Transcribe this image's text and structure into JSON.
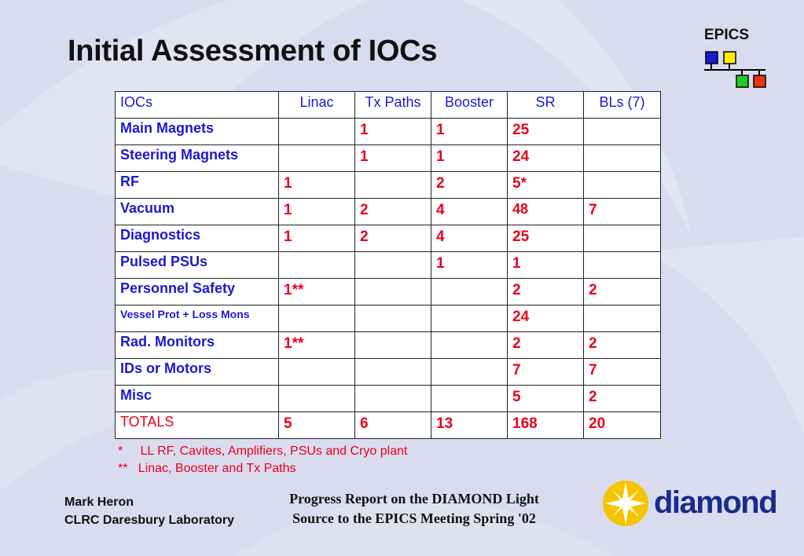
{
  "slide": {
    "title": "Initial Assessment of IOCs",
    "logo_text": "EPICS"
  },
  "table": {
    "headers": [
      "IOCs",
      "Linac",
      "Tx Paths",
      "Booster",
      "SR",
      "BLs (7)"
    ],
    "rows": [
      [
        "Main Magnets",
        "",
        "1",
        "1",
        "25",
        ""
      ],
      [
        "Steering Magnets",
        "",
        "1",
        "1",
        "24",
        ""
      ],
      [
        "RF",
        "1",
        "",
        "2",
        "5*",
        ""
      ],
      [
        "Vacuum",
        "1",
        "2",
        "4",
        "48",
        "7"
      ],
      [
        "Diagnostics",
        "1",
        "2",
        "4",
        "25",
        ""
      ],
      [
        "Pulsed PSUs",
        "",
        "",
        "1",
        "1",
        ""
      ],
      [
        "Personnel Safety",
        "1**",
        "",
        "",
        "2",
        "2"
      ],
      [
        "Vessel Prot + Loss Mons",
        "",
        "",
        "",
        "24",
        ""
      ],
      [
        "Rad. Monitors",
        "1**",
        "",
        "",
        "2",
        "2"
      ],
      [
        "IDs or Motors",
        "",
        "",
        "",
        "7",
        "7"
      ],
      [
        "Misc",
        "",
        "",
        "",
        "5",
        "2"
      ],
      [
        "TOTALS",
        "5",
        "6",
        "13",
        "168",
        "20"
      ]
    ]
  },
  "notes": [
    "*     LL RF, Cavites, Amplifiers, PSUs and Cryo plant",
    "**   Linac, Booster and Tx Paths"
  ],
  "footer": {
    "author": "Mark Heron",
    "organization": "CLRC Daresbury Laboratory",
    "report_line1": "Progress Report on the DIAMOND Light",
    "report_line2": "Source to the EPICS Meeting Spring '02",
    "brand": "diamond"
  },
  "colors": {
    "background": "#d9dcee",
    "blue_text": "#1a1ad0",
    "red_text": "#e8001c",
    "brand_blue": "#1a2a8a",
    "star_yellow": "#f5c400"
  },
  "icons": [
    "epics-network-icon",
    "diamond-star-icon"
  ]
}
